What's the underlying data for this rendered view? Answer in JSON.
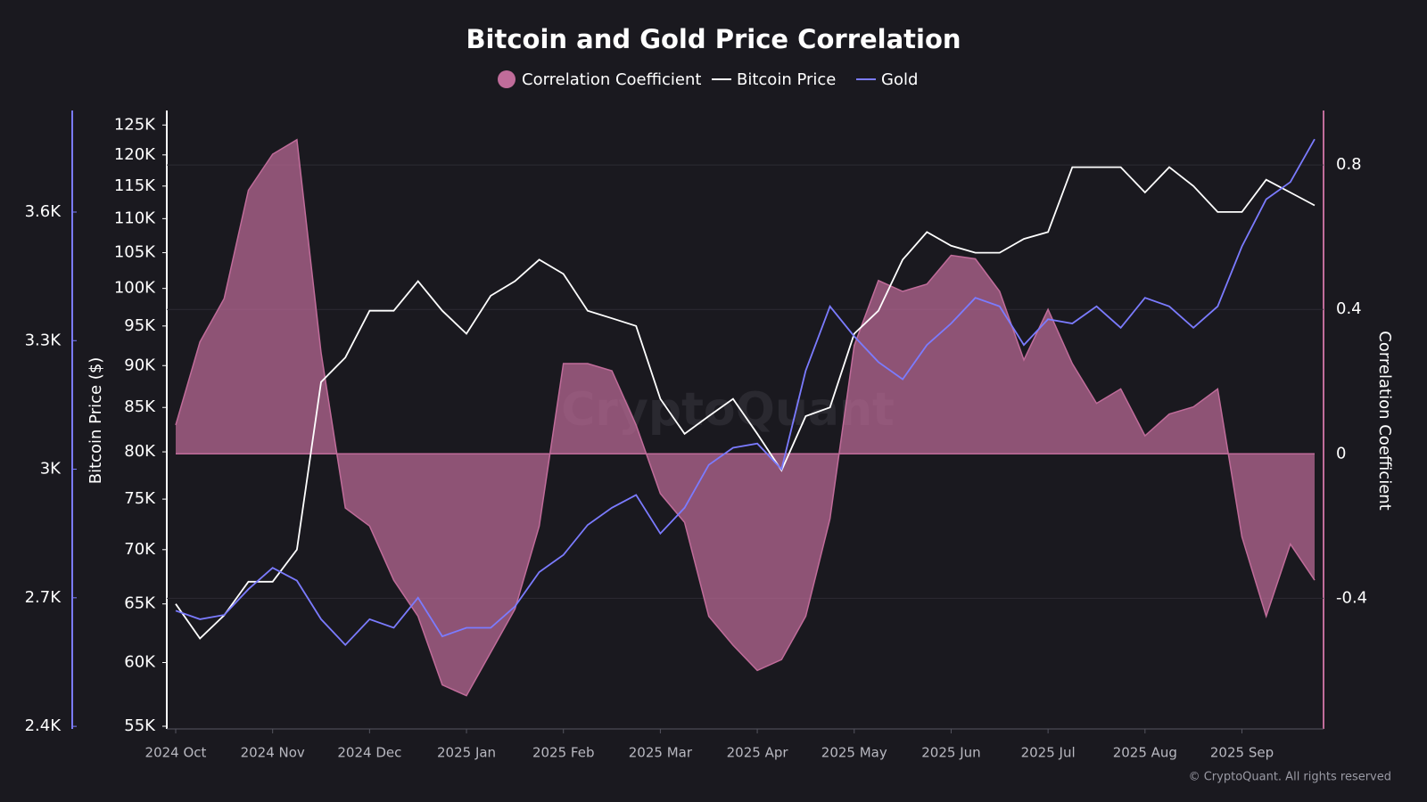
{
  "chart_data": {
    "type": "line",
    "title": "Bitcoin and Gold Price Correlation",
    "y_label": "Bitcoin Price ($)",
    "y2_label": "Correlation Coefficient",
    "watermark": "CryptoQuant",
    "copyright": "© CryptoQuant. All rights reserved",
    "categories": [
      "2024 Oct",
      null,
      null,
      null,
      "2024 Nov",
      null,
      null,
      null,
      "2024 Dec",
      null,
      null,
      null,
      "2025 Jan",
      null,
      null,
      null,
      "2025 Feb",
      null,
      null,
      null,
      "2025 Mar",
      null,
      null,
      null,
      "2025 Apr",
      null,
      null,
      null,
      "2025 May",
      null,
      null,
      null,
      "2025 Jun",
      null,
      null,
      null,
      "2025 Jul",
      null,
      null,
      null,
      "2025 Aug",
      null,
      null,
      null,
      "2025 Sep",
      null,
      null,
      null
    ],
    "series": [
      {
        "name": "Correlation Coefficient",
        "color": "#c06c9a",
        "style": "area",
        "axis": "y2",
        "values": [
          0.08,
          0.31,
          0.43,
          0.73,
          0.83,
          0.87,
          0.28,
          -0.15,
          -0.2,
          -0.35,
          -0.45,
          -0.64,
          -0.67,
          -0.55,
          -0.43,
          -0.2,
          0.25,
          0.25,
          0.23,
          0.08,
          -0.11,
          -0.19,
          -0.45,
          -0.53,
          -0.6,
          -0.57,
          -0.45,
          -0.18,
          0.3,
          0.48,
          0.45,
          0.47,
          0.55,
          0.54,
          0.45,
          0.26,
          0.4,
          0.25,
          0.14,
          0.18,
          0.05,
          0.11,
          0.13,
          0.18,
          -0.23,
          -0.45,
          -0.25,
          -0.35
        ]
      },
      {
        "name": "Bitcoin Price",
        "color": "#ffffff",
        "style": "line",
        "axis": "y",
        "values": [
          65000,
          62000,
          64000,
          67000,
          67000,
          70000,
          88000,
          91000,
          97000,
          97000,
          101000,
          97000,
          94000,
          99000,
          101000,
          104000,
          102000,
          97000,
          96000,
          95000,
          86000,
          82000,
          84000,
          86000,
          82000,
          78000,
          84000,
          85000,
          94000,
          97000,
          104000,
          108000,
          106000,
          105000,
          105000,
          107000,
          108000,
          118000,
          118000,
          118000,
          114000,
          118000,
          115000,
          111000,
          111000,
          116000,
          114000,
          112000
        ]
      },
      {
        "name": "Gold",
        "color": "#7b7bff",
        "style": "line",
        "axis": "y3",
        "values": [
          2670,
          2650,
          2660,
          2720,
          2770,
          2740,
          2650,
          2590,
          2650,
          2630,
          2700,
          2610,
          2630,
          2630,
          2680,
          2760,
          2800,
          2870,
          2910,
          2940,
          2850,
          2910,
          3010,
          3050,
          3060,
          3000,
          3230,
          3380,
          3310,
          3250,
          3210,
          3290,
          3340,
          3400,
          3380,
          3290,
          3350,
          3340,
          3380,
          3330,
          3400,
          3380,
          3330,
          3380,
          3520,
          3630,
          3670,
          3770
        ]
      }
    ],
    "ylim": [
      54800,
      127500
    ],
    "ylog": true,
    "yticks": [
      {
        "value": 55000,
        "label": "55K"
      },
      {
        "value": 60000,
        "label": "60K"
      },
      {
        "value": 65000,
        "label": "65K"
      },
      {
        "value": 70000,
        "label": "70K"
      },
      {
        "value": 75000,
        "label": "75K"
      },
      {
        "value": 80000,
        "label": "80K"
      },
      {
        "value": 85000,
        "label": "85K"
      },
      {
        "value": 90000,
        "label": "90K"
      },
      {
        "value": 95000,
        "label": "95K"
      },
      {
        "value": 100000,
        "label": "100K"
      },
      {
        "value": 105000,
        "label": "105K"
      },
      {
        "value": 110000,
        "label": "110K"
      },
      {
        "value": 115000,
        "label": "115K"
      },
      {
        "value": 120000,
        "label": "120K"
      },
      {
        "value": 125000,
        "label": "125K"
      }
    ],
    "y2lim": [
      -0.762,
      0.951
    ],
    "y2ticks": [
      -0.4,
      0,
      0.4,
      0.8
    ],
    "y3lim": [
      2394,
      3837
    ],
    "y3ticks": [
      {
        "value": 2400,
        "label": "2.4K"
      },
      {
        "value": 2700,
        "label": "2.7K"
      },
      {
        "value": 3000,
        "label": "3K"
      },
      {
        "value": 3300,
        "label": "3.3K"
      },
      {
        "value": 3600,
        "label": "3.6K"
      }
    ],
    "grid": true
  }
}
